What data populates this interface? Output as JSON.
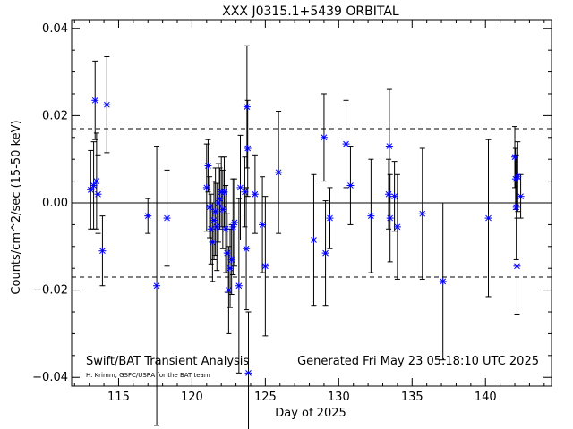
{
  "chart_data": {
    "type": "scatter",
    "title": "XXX J0315.1+5439 ORBITAL",
    "xlabel": "Day of 2025",
    "ylabel": "Counts/cm^2/sec (15-50 keV)",
    "xlim": [
      111.8,
      144.5
    ],
    "ylim": [
      -0.042,
      0.042
    ],
    "xticks": [
      115,
      120,
      125,
      130,
      135,
      140
    ],
    "yticks": [
      -0.04,
      -0.02,
      0.0,
      0.02,
      0.04
    ],
    "ytick_labels": [
      "−0.04",
      "−0.02",
      "0.00",
      "0.02",
      "0.04"
    ],
    "reference_lines": [
      0.017,
      -0.017
    ],
    "zero_line": 0.0,
    "marker_color": "#0000ff",
    "errorbar_color": "#000000",
    "annotation_left": "Swift/BAT Transient Analysis",
    "annotation_right": "Generated Fri May 23 05:18:10 UTC 2025",
    "credit": "H. Krimm, GSFC/USRA for the BAT team",
    "points": [
      {
        "x": 113.1,
        "y": 0.003,
        "err": 0.009
      },
      {
        "x": 113.3,
        "y": 0.004,
        "err": 0.01
      },
      {
        "x": 113.4,
        "y": 0.0235,
        "err": 0.009
      },
      {
        "x": 113.5,
        "y": 0.005,
        "err": 0.011
      },
      {
        "x": 113.6,
        "y": 0.002,
        "err": 0.009
      },
      {
        "x": 113.9,
        "y": -0.011,
        "err": 0.008
      },
      {
        "x": 114.2,
        "y": 0.0225,
        "err": 0.011
      },
      {
        "x": 117.0,
        "y": -0.003,
        "err": 0.004
      },
      {
        "x": 117.6,
        "y": -0.019,
        "err": 0.032
      },
      {
        "x": 118.3,
        "y": -0.0035,
        "err": 0.011
      },
      {
        "x": 121.0,
        "y": 0.0035,
        "err": 0.01
      },
      {
        "x": 121.1,
        "y": 0.0085,
        "err": 0.006
      },
      {
        "x": 121.2,
        "y": -0.001,
        "err": 0.007
      },
      {
        "x": 121.3,
        "y": -0.006,
        "err": 0.008
      },
      {
        "x": 121.4,
        "y": -0.009,
        "err": 0.009
      },
      {
        "x": 121.5,
        "y": -0.004,
        "err": 0.009
      },
      {
        "x": 121.6,
        "y": -0.002,
        "err": 0.01
      },
      {
        "x": 121.7,
        "y": -0.0055,
        "err": 0.01
      },
      {
        "x": 121.8,
        "y": 0.0,
        "err": 0.009
      },
      {
        "x": 121.9,
        "y": 0.001,
        "err": 0.007
      },
      {
        "x": 122.0,
        "y": 0.0025,
        "err": 0.008
      },
      {
        "x": 122.1,
        "y": -0.0015,
        "err": 0.009
      },
      {
        "x": 122.2,
        "y": 0.0025,
        "err": 0.008
      },
      {
        "x": 122.3,
        "y": -0.006,
        "err": 0.01
      },
      {
        "x": 122.4,
        "y": -0.0115,
        "err": 0.009
      },
      {
        "x": 122.5,
        "y": -0.02,
        "err": 0.01
      },
      {
        "x": 122.6,
        "y": -0.015,
        "err": 0.009
      },
      {
        "x": 122.7,
        "y": -0.013,
        "err": 0.008
      },
      {
        "x": 122.8,
        "y": -0.0055,
        "err": 0.011
      },
      {
        "x": 122.9,
        "y": -0.0045,
        "err": 0.01
      },
      {
        "x": 123.2,
        "y": -0.019,
        "err": 0.02
      },
      {
        "x": 123.3,
        "y": 0.0035,
        "err": 0.012
      },
      {
        "x": 123.6,
        "y": 0.0025,
        "err": 0.008
      },
      {
        "x": 123.7,
        "y": -0.0105,
        "err": 0.014
      },
      {
        "x": 123.75,
        "y": 0.022,
        "err": 0.014
      },
      {
        "x": 123.8,
        "y": 0.0125,
        "err": 0.011
      },
      {
        "x": 123.85,
        "y": -0.039,
        "err": 0.014
      },
      {
        "x": 124.3,
        "y": 0.002,
        "err": 0.009
      },
      {
        "x": 124.8,
        "y": -0.005,
        "err": 0.011
      },
      {
        "x": 125.0,
        "y": -0.0145,
        "err": 0.016
      },
      {
        "x": 125.9,
        "y": 0.007,
        "err": 0.014
      },
      {
        "x": 128.3,
        "y": -0.0085,
        "err": 0.015
      },
      {
        "x": 129.0,
        "y": 0.015,
        "err": 0.01
      },
      {
        "x": 129.1,
        "y": -0.0115,
        "err": 0.012
      },
      {
        "x": 129.4,
        "y": -0.0035,
        "err": 0.007
      },
      {
        "x": 130.5,
        "y": 0.0135,
        "err": 0.01
      },
      {
        "x": 130.8,
        "y": 0.004,
        "err": 0.009
      },
      {
        "x": 132.2,
        "y": -0.003,
        "err": 0.013
      },
      {
        "x": 133.4,
        "y": 0.002,
        "err": 0.008
      },
      {
        "x": 133.45,
        "y": 0.013,
        "err": 0.013
      },
      {
        "x": 133.5,
        "y": -0.0035,
        "err": 0.01
      },
      {
        "x": 133.8,
        "y": 0.0015,
        "err": 0.008
      },
      {
        "x": 134.0,
        "y": -0.0055,
        "err": 0.012
      },
      {
        "x": 135.7,
        "y": -0.0025,
        "err": 0.015
      },
      {
        "x": 137.1,
        "y": -0.018,
        "err": 0.018
      },
      {
        "x": 140.2,
        "y": -0.0035,
        "err": 0.018
      },
      {
        "x": 142.0,
        "y": 0.0105,
        "err": 0.007
      },
      {
        "x": 142.05,
        "y": 0.0055,
        "err": 0.007
      },
      {
        "x": 142.1,
        "y": -0.001,
        "err": 0.012
      },
      {
        "x": 142.15,
        "y": -0.0145,
        "err": 0.011
      },
      {
        "x": 142.2,
        "y": 0.006,
        "err": 0.008
      },
      {
        "x": 142.4,
        "y": 0.0015,
        "err": 0.005
      }
    ]
  }
}
